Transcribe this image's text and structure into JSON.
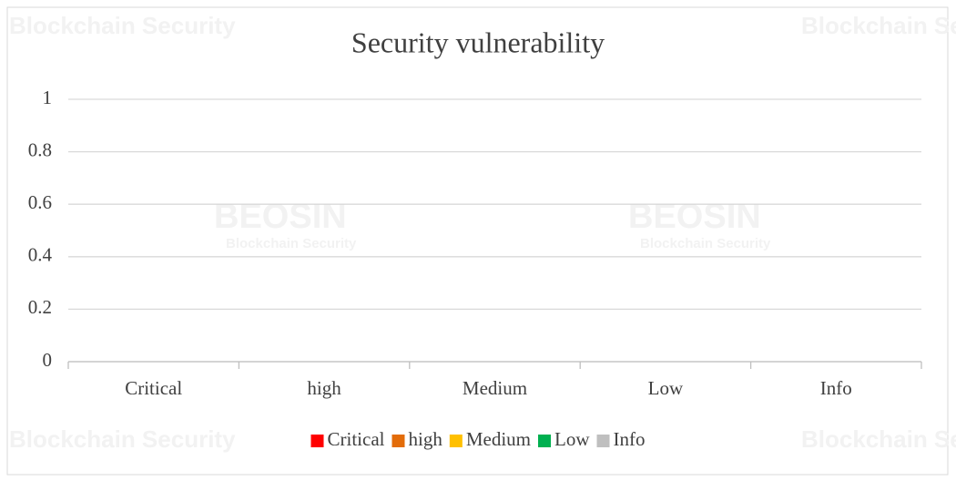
{
  "chart_data": {
    "type": "bar",
    "title": "Security vulnerability",
    "categories": [
      "Critical",
      "high",
      "Medium",
      "Low",
      "Info"
    ],
    "values": [
      0,
      0,
      0,
      0,
      0
    ],
    "colors": [
      "#ff0000",
      "#e36c09",
      "#ffc000",
      "#00b050",
      "#bfbfbf"
    ],
    "ylim": [
      0,
      1
    ],
    "yticks": [
      0,
      0.2,
      0.4,
      0.6,
      0.8,
      1
    ],
    "grid": true,
    "legend": "bottom",
    "watermark": {
      "brand": "BEOSIN",
      "tagline": "Blockchain Security"
    }
  }
}
